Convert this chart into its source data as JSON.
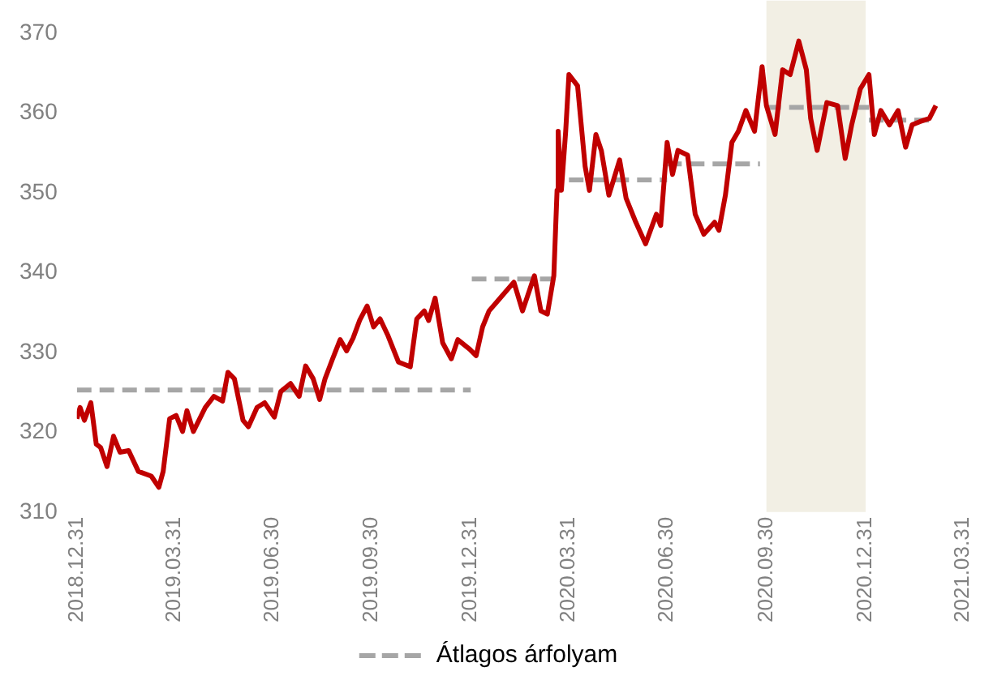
{
  "chart_data": {
    "type": "line",
    "xlim": [
      "2018-12-31",
      "2021-03-31"
    ],
    "xticks": [
      {
        "value": "2018-12-31",
        "label": "2018.12.31"
      },
      {
        "value": "2019-03-31",
        "label": "2019.03.31"
      },
      {
        "value": "2019-06-30",
        "label": "2019.06.30"
      },
      {
        "value": "2019-09-30",
        "label": "2019.09.30"
      },
      {
        "value": "2019-12-31",
        "label": "2019.12.31"
      },
      {
        "value": "2020-03-31",
        "label": "2020.03.31"
      },
      {
        "value": "2020-06-30",
        "label": "2020.06.30"
      },
      {
        "value": "2020-09-30",
        "label": "2020.09.30"
      },
      {
        "value": "2020-12-31",
        "label": "2020.12.31"
      },
      {
        "value": "2021-03-31",
        "label": "2021.03.31"
      }
    ],
    "ylim": [
      310,
      370
    ],
    "yticks": [
      310,
      320,
      330,
      340,
      350,
      360,
      370
    ],
    "grid": false,
    "legend": "bottom",
    "marker": "none",
    "bands": [
      {
        "axis": "x",
        "from": "2020-09-30",
        "to": "2020-12-31",
        "color": "#f2efe4"
      }
    ],
    "series": [
      {
        "color": "#c00000",
        "line_style": "solid",
        "x": [
          "2018-12-31",
          "2019-01-03",
          "2019-01-07",
          "2019-01-13",
          "2019-01-18",
          "2019-01-22",
          "2019-01-28",
          "2019-02-03",
          "2019-02-09",
          "2019-02-17",
          "2019-02-26",
          "2019-03-10",
          "2019-03-17",
          "2019-03-21",
          "2019-03-27",
          "2019-04-02",
          "2019-04-08",
          "2019-04-12",
          "2019-04-18",
          "2019-04-29",
          "2019-05-07",
          "2019-05-15",
          "2019-05-20",
          "2019-05-26",
          "2019-06-03",
          "2019-06-08",
          "2019-06-16",
          "2019-06-23",
          "2019-07-02",
          "2019-07-08",
          "2019-07-17",
          "2019-07-25",
          "2019-07-31",
          "2019-08-07",
          "2019-08-13",
          "2019-08-18",
          "2019-08-25",
          "2019-09-01",
          "2019-09-07",
          "2019-09-13",
          "2019-09-19",
          "2019-09-26",
          "2019-10-02",
          "2019-10-08",
          "2019-10-15",
          "2019-10-25",
          "2019-11-05",
          "2019-11-11",
          "2019-11-18",
          "2019-11-22",
          "2019-11-28",
          "2019-12-05",
          "2019-12-13",
          "2019-12-19",
          "2019-12-30",
          "2020-01-05",
          "2020-01-11",
          "2020-01-17",
          "2020-01-26",
          "2020-02-09",
          "2020-02-17",
          "2020-02-28",
          "2020-03-05",
          "2020-03-11",
          "2020-03-17",
          "2020-03-20",
          "2020-03-21",
          "2020-03-24",
          "2020-03-28",
          "2020-03-31",
          "2020-04-08",
          "2020-04-15",
          "2020-04-19",
          "2020-04-25",
          "2020-04-30",
          "2020-05-07",
          "2020-05-17",
          "2020-05-23",
          "2020-06-01",
          "2020-06-10",
          "2020-06-20",
          "2020-06-24",
          "2020-06-30",
          "2020-07-05",
          "2020-07-10",
          "2020-07-19",
          "2020-07-26",
          "2020-08-03",
          "2020-08-13",
          "2020-08-17",
          "2020-08-23",
          "2020-08-29",
          "2020-09-04",
          "2020-09-11",
          "2020-09-19",
          "2020-09-26",
          "2020-09-30",
          "2020-10-08",
          "2020-10-15",
          "2020-10-22",
          "2020-10-30",
          "2020-11-06",
          "2020-11-10",
          "2020-11-16",
          "2020-11-25",
          "2020-12-05",
          "2020-12-12",
          "2020-12-18",
          "2020-12-26",
          "2021-01-03",
          "2021-01-08",
          "2021-01-14",
          "2021-01-22",
          "2021-01-30",
          "2021-02-06",
          "2021-02-12",
          "2021-02-19",
          "2021-02-28",
          "2021-03-06"
        ],
        "values": [
          321.7,
          323.1,
          321.5,
          323.7,
          318.5,
          318.1,
          315.7,
          319.5,
          317.5,
          317.7,
          315.1,
          314.5,
          313.1,
          315.1,
          321.7,
          322.1,
          320.1,
          322.7,
          320.1,
          323.1,
          324.5,
          323.9,
          327.5,
          326.7,
          321.5,
          320.7,
          323.1,
          323.7,
          321.9,
          325.1,
          326.1,
          324.5,
          328.3,
          326.7,
          324.1,
          326.7,
          329.2,
          331.6,
          330.2,
          331.8,
          334.0,
          335.8,
          333.2,
          334.2,
          332.2,
          328.8,
          328.2,
          334.2,
          335.2,
          334.0,
          336.8,
          331.2,
          329.2,
          331.6,
          330.4,
          329.6,
          333.2,
          335.2,
          336.6,
          338.8,
          335.2,
          339.6,
          335.2,
          334.8,
          339.6,
          350.3,
          357.7,
          350.3,
          357.7,
          364.8,
          363.4,
          353.3,
          350.3,
          357.3,
          355.3,
          349.7,
          354.1,
          349.3,
          346.3,
          343.6,
          347.3,
          345.9,
          356.3,
          352.3,
          355.3,
          354.7,
          347.3,
          344.8,
          346.3,
          345.3,
          349.7,
          356.3,
          357.7,
          360.3,
          357.7,
          365.8,
          360.9,
          357.3,
          365.4,
          364.8,
          369.0,
          365.4,
          359.3,
          355.3,
          361.3,
          360.9,
          354.3,
          358.5,
          363.0,
          364.8,
          357.3,
          360.3,
          358.5,
          360.3,
          355.7,
          358.5,
          358.9,
          359.3,
          360.9
        ]
      },
      {
        "name": "Átlagos árfolyam",
        "color": "#a6a6a6",
        "line_style": "dashed",
        "x": [
          "2018-12-31",
          "2019-12-31"
        ],
        "values": [
          325.3,
          325.3
        ]
      },
      {
        "color": "#a6a6a6",
        "line_style": "dashed",
        "x": [
          "2020-01-01",
          "2020-03-24"
        ],
        "values": [
          339.2,
          339.2
        ]
      },
      {
        "color": "#a6a6a6",
        "line_style": "dashed",
        "x": [
          "2020-03-31",
          "2020-06-30"
        ],
        "values": [
          351.6,
          351.6
        ]
      },
      {
        "color": "#a6a6a6",
        "line_style": "dashed",
        "x": [
          "2020-06-30",
          "2020-09-24"
        ],
        "values": [
          353.6,
          353.6
        ]
      },
      {
        "color": "#a6a6a6",
        "line_style": "dashed",
        "x": [
          "2020-09-30",
          "2021-01-03"
        ],
        "values": [
          360.7,
          360.7
        ]
      },
      {
        "color": "#a6a6a6",
        "line_style": "dashed",
        "x": [
          "2021-01-03",
          "2021-03-06"
        ],
        "values": [
          359.1,
          359.1
        ]
      }
    ]
  }
}
